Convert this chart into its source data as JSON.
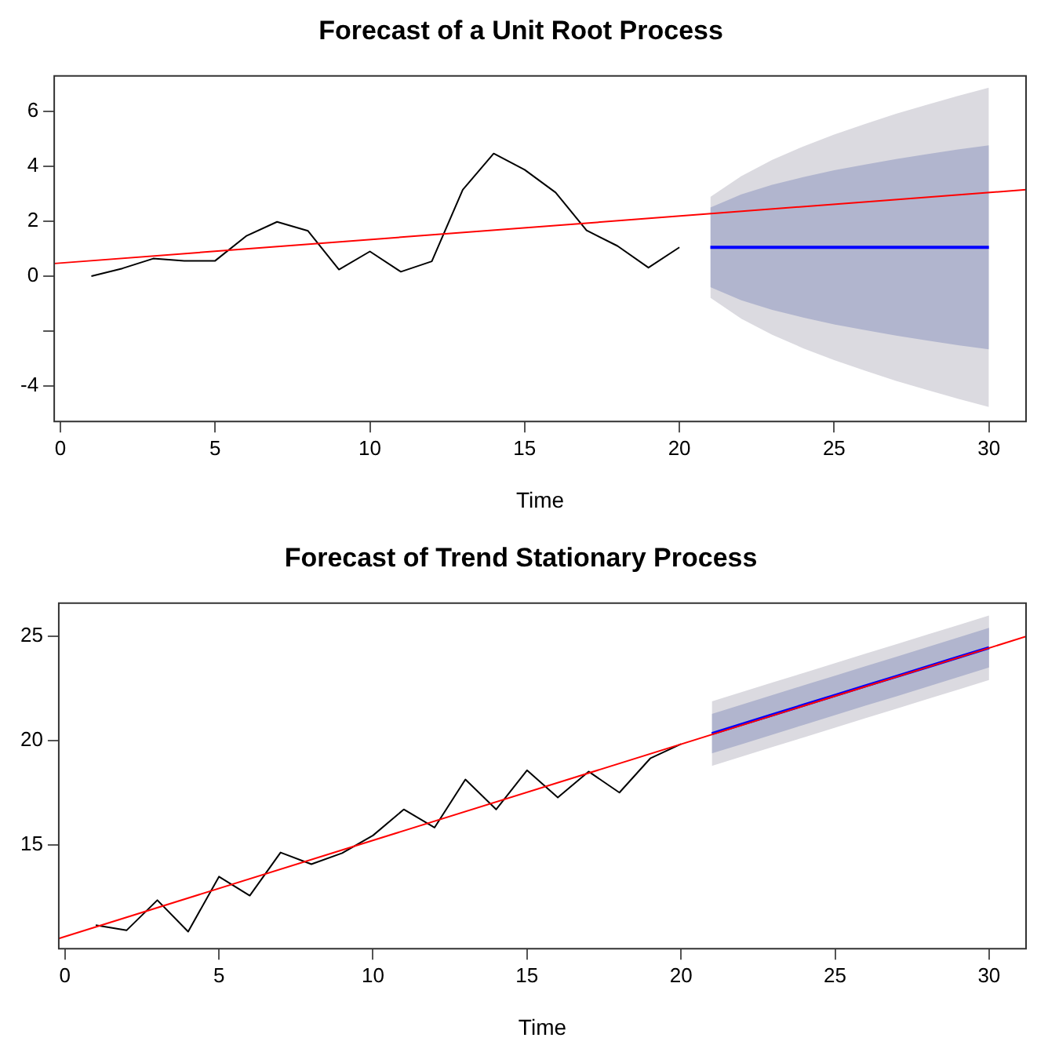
{
  "chart_data": [
    {
      "type": "line",
      "title": "Forecast of a Unit Root Process",
      "xlabel": "Time",
      "xlim": [
        -0.2,
        31.2
      ],
      "xticks": [
        0,
        5,
        10,
        15,
        20,
        25,
        30
      ],
      "ylim": [
        -5.3,
        7.3
      ],
      "yticks": [
        6,
        4,
        2,
        0,
        {
          "value": -2,
          "label": null
        },
        -4
      ],
      "grid": false,
      "legend": false,
      "marker": "none",
      "line_style": "solid",
      "series": [
        {
          "x": [
            1,
            2,
            3,
            4,
            5,
            6,
            7,
            8,
            9,
            10,
            11,
            12,
            13,
            14,
            15,
            16,
            17,
            18,
            19,
            20
          ],
          "values": [
            0,
            0.28,
            0.64,
            0.56,
            0.56,
            1.46,
            1.98,
            1.65,
            0.24,
            0.9,
            0.16,
            0.54,
            3.15,
            4.47,
            3.88,
            3.05,
            1.67,
            1.1,
            0.31,
            1.05
          ],
          "color": "#000000"
        },
        {
          "x": [
            21,
            22,
            23,
            24,
            25,
            26,
            27,
            28,
            29,
            30
          ],
          "values": [
            null,
            null,
            null,
            null,
            null,
            null,
            null,
            null,
            null,
            null
          ],
          "color": "#dbdae0",
          "lower": [
            -0.79,
            -1.55,
            -2.14,
            -2.63,
            -3.06,
            -3.45,
            -3.82,
            -4.15,
            -4.47,
            -4.77
          ],
          "upper": [
            2.89,
            3.65,
            4.24,
            4.73,
            5.16,
            5.55,
            5.92,
            6.25,
            6.57,
            6.87
          ]
        },
        {
          "x": [
            21,
            22,
            23,
            24,
            25,
            26,
            27,
            28,
            29,
            30
          ],
          "values": [
            null,
            null,
            null,
            null,
            null,
            null,
            null,
            null,
            null,
            null
          ],
          "color": "#b1b5ce",
          "lower": [
            -0.4,
            -0.88,
            -1.23,
            -1.51,
            -1.76,
            -1.97,
            -2.17,
            -2.35,
            -2.52,
            -2.67
          ],
          "upper": [
            2.5,
            2.98,
            3.33,
            3.61,
            3.86,
            4.07,
            4.27,
            4.45,
            4.62,
            4.77
          ]
        },
        {
          "x": [
            21,
            22,
            23,
            24,
            25,
            26,
            27,
            28,
            29,
            30
          ],
          "values": [
            1.05,
            1.05,
            1.05,
            1.05,
            1.05,
            1.05,
            1.05,
            1.05,
            1.05,
            1.05
          ],
          "color": "#0000ff"
        },
        {
          "x": [
            -0.2,
            31.2
          ],
          "values": [
            0.46,
            3.15
          ],
          "color": "#ff0000"
        }
      ]
    },
    {
      "type": "line",
      "title": "Forecast of Trend Stationary Process",
      "xlabel": "Time",
      "xlim": [
        -0.2,
        31.2
      ],
      "xticks": [
        0,
        5,
        10,
        15,
        20,
        25,
        30
      ],
      "ylim": [
        10.0,
        26.6
      ],
      "yticks": [
        15,
        20,
        25
      ],
      "grid": false,
      "legend": false,
      "marker": "none",
      "line_style": "solid",
      "series": [
        {
          "x": [
            1,
            2,
            3,
            4,
            5,
            6,
            7,
            8,
            9,
            10,
            11,
            12,
            13,
            14,
            15,
            16,
            17,
            18,
            19,
            20
          ],
          "values": [
            11.13,
            10.88,
            12.33,
            10.82,
            13.46,
            12.55,
            14.62,
            14.06,
            14.59,
            15.44,
            16.69,
            15.82,
            18.13,
            16.69,
            18.57,
            17.26,
            18.51,
            17.5,
            19.14,
            19.83
          ],
          "color": "#000000"
        },
        {
          "x": [
            21,
            22,
            23,
            24,
            25,
            26,
            27,
            28,
            29,
            30
          ],
          "values": [
            null,
            null,
            null,
            null,
            null,
            null,
            null,
            null,
            null,
            null
          ],
          "color": "#dbdae0",
          "lower": [
            18.78,
            19.24,
            19.7,
            20.16,
            20.62,
            21.08,
            21.53,
            21.99,
            22.45,
            22.91
          ],
          "upper": [
            21.88,
            22.34,
            22.8,
            23.26,
            23.72,
            24.18,
            24.63,
            25.09,
            25.55,
            26.01
          ]
        },
        {
          "x": [
            21,
            22,
            23,
            24,
            25,
            26,
            27,
            28,
            29,
            30
          ],
          "values": [
            null,
            null,
            null,
            null,
            null,
            null,
            null,
            null,
            null,
            null
          ],
          "color": "#b1b5ce",
          "lower": [
            19.38,
            19.84,
            20.3,
            20.76,
            21.22,
            21.68,
            22.13,
            22.59,
            23.05,
            23.51
          ],
          "upper": [
            21.28,
            21.74,
            22.2,
            22.66,
            23.12,
            23.58,
            24.03,
            24.49,
            24.95,
            25.41
          ]
        },
        {
          "x": [
            21,
            22,
            23,
            24,
            25,
            26,
            27,
            28,
            29,
            30
          ],
          "values": [
            20.33,
            20.79,
            21.25,
            21.71,
            22.17,
            22.63,
            23.08,
            23.54,
            24.0,
            24.46
          ],
          "color": "#0000ff"
        },
        {
          "x": [
            -0.2,
            31.2
          ],
          "values": [
            10.49,
            25.0
          ],
          "color": "#ff0000"
        }
      ]
    }
  ]
}
